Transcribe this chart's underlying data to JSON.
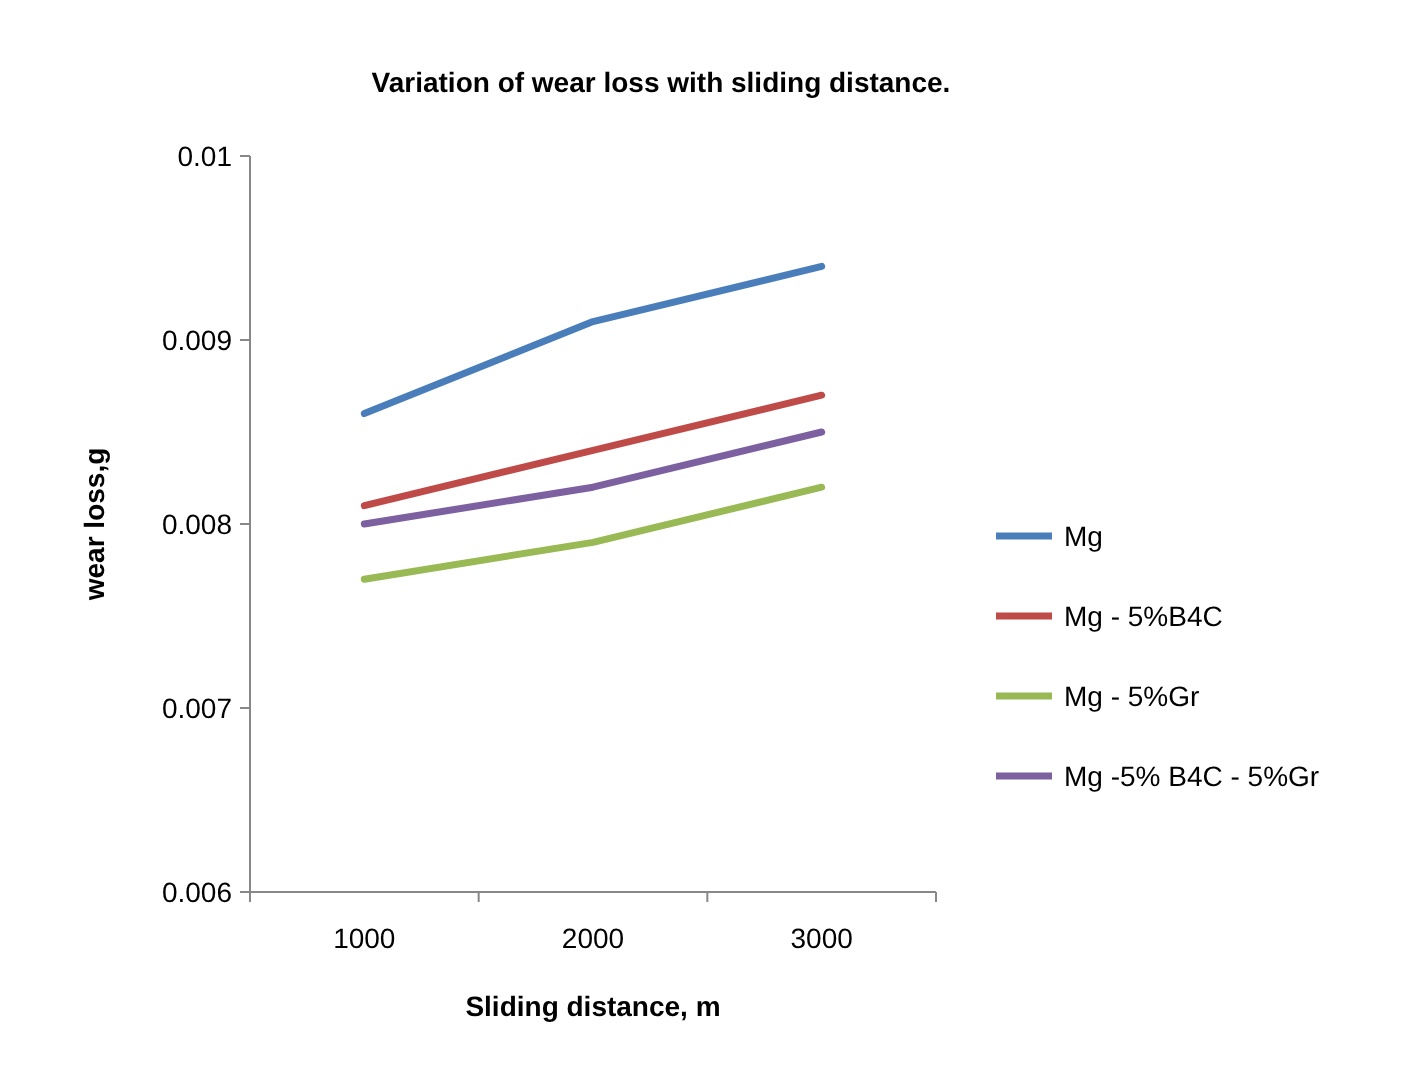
{
  "chart_data": {
    "type": "line",
    "title": "Variation of wear loss with sliding distance.",
    "xlabel": "Sliding distance, m",
    "ylabel": "wear loss,g",
    "categories": [
      "1000",
      "2000",
      "3000"
    ],
    "ylim": [
      0.006,
      0.01
    ],
    "yticks": [
      0.006,
      0.007,
      0.008,
      0.009,
      0.01
    ],
    "grid": false,
    "legend": "right",
    "marker": "none",
    "line_style": "solid",
    "series": [
      {
        "name": "Mg",
        "color": "#4a7ebb",
        "values": [
          0.0086,
          0.0091,
          0.0094
        ]
      },
      {
        "name": "Mg - 5%B4C",
        "color": "#be4b48",
        "values": [
          0.0081,
          0.0084,
          0.0087
        ]
      },
      {
        "name": "Mg - 5%Gr",
        "color": "#98b954",
        "values": [
          0.0077,
          0.0079,
          0.0082
        ]
      },
      {
        "name": "Mg -5% B4C - 5%Gr",
        "color": "#7d60a0",
        "values": [
          0.008,
          0.0082,
          0.0085
        ]
      }
    ]
  }
}
